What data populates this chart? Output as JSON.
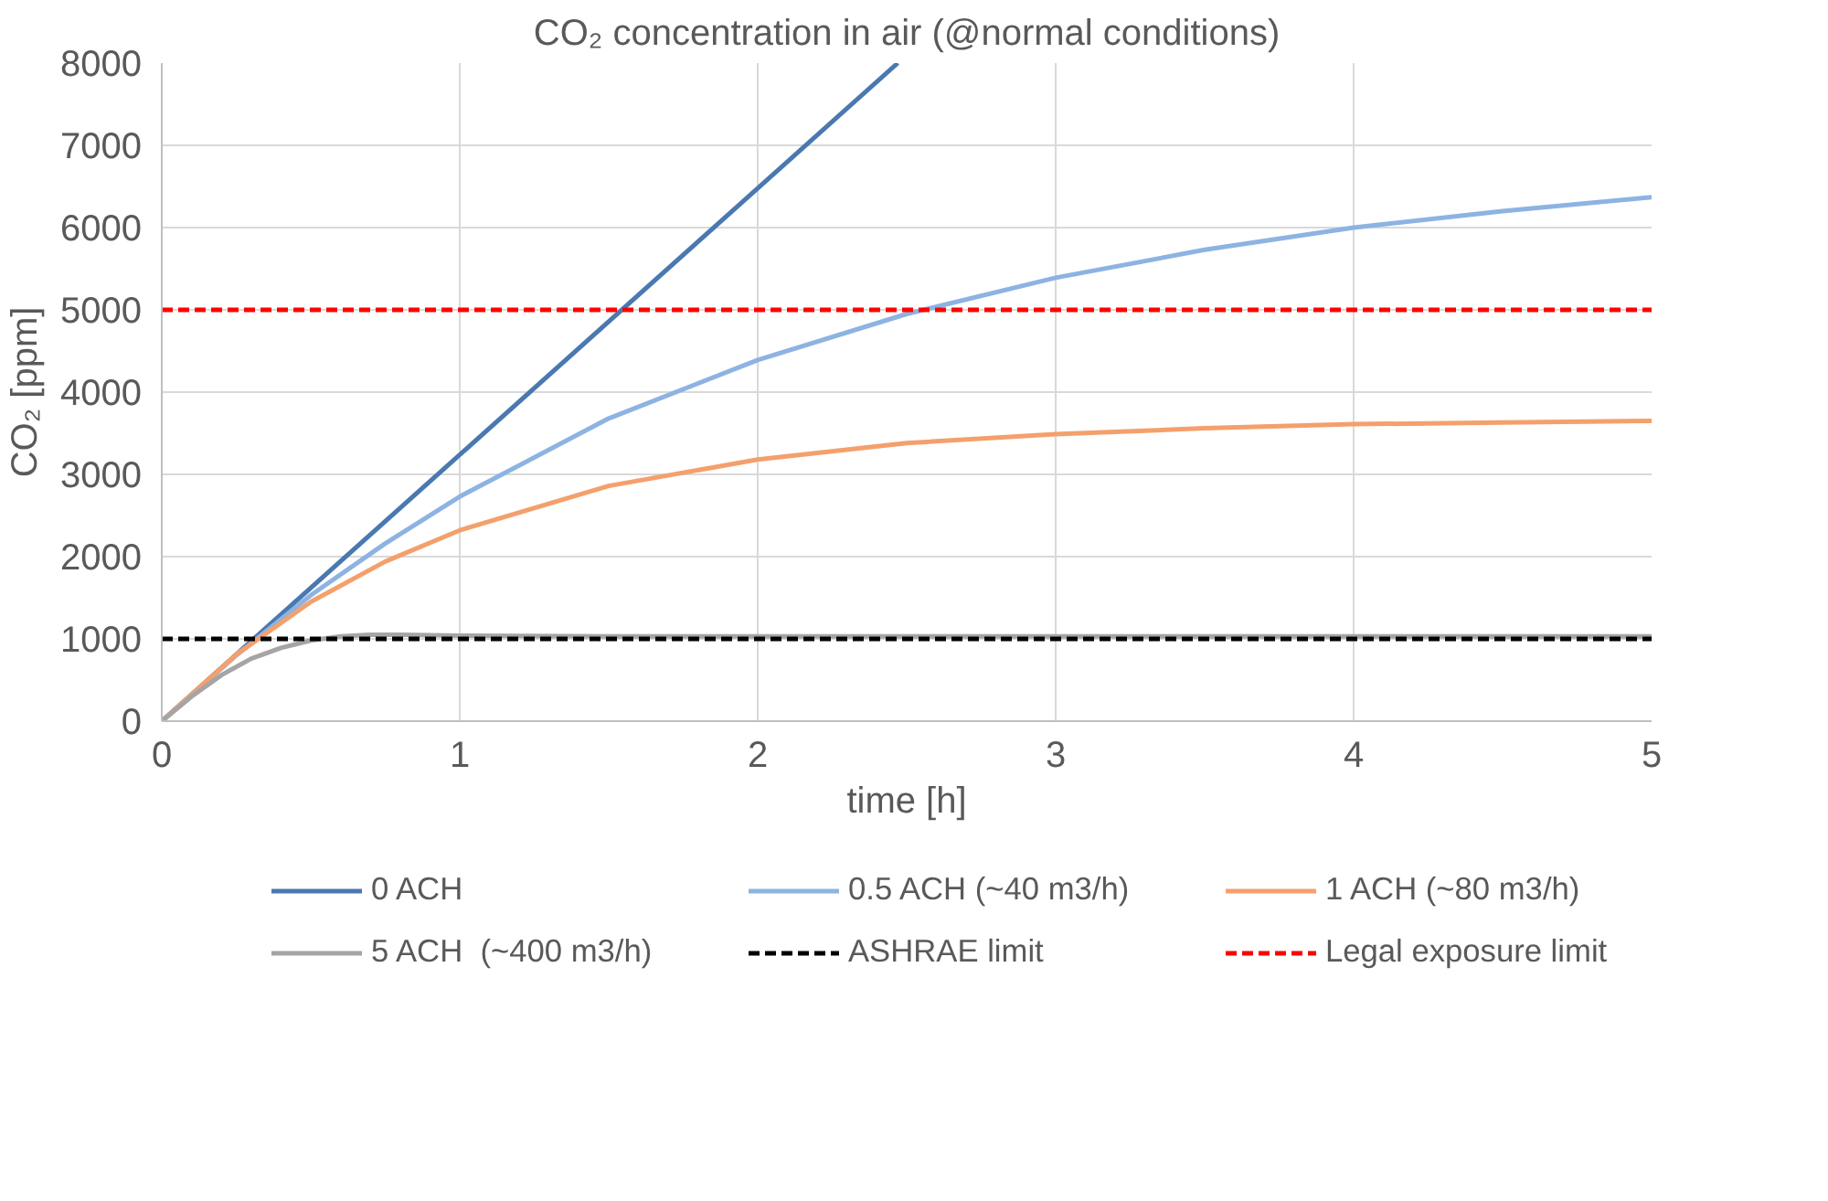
{
  "chart_data": {
    "type": "line",
    "title": "CO₂ concentration in air (@normal conditions)",
    "xlabel": "time [h]",
    "ylabel": "CO₂ [ppm]",
    "xlim": [
      0,
      5
    ],
    "ylim": [
      0,
      8000
    ],
    "xticks": [
      0,
      1,
      2,
      3,
      4,
      5
    ],
    "yticks": [
      0,
      1000,
      2000,
      3000,
      4000,
      5000,
      6000,
      7000,
      8000
    ],
    "grid": true,
    "legend": "bottom",
    "marker": "none",
    "line_style": "solid",
    "series": [
      {
        "name": "0 ACH",
        "color": "#4a78b0",
        "x": [
          0,
          2.47
        ],
        "values": [
          0,
          8000
        ]
      },
      {
        "name": "0.5 ACH (~40 m3/h)",
        "color": "#8db3e2",
        "x": [
          0,
          0.25,
          0.5,
          0.75,
          1,
          1.5,
          2,
          2.5,
          3,
          3.5,
          4,
          4.5,
          5
        ],
        "values": [
          0,
          800,
          1530,
          2160,
          2730,
          3680,
          4390,
          4950,
          5390,
          5730,
          6000,
          6200,
          6370
        ]
      },
      {
        "name": "1 ACH (~80 m3/h)",
        "color": "#f4a06c",
        "x": [
          0,
          0.25,
          0.5,
          0.75,
          1,
          1.5,
          2,
          2.5,
          3,
          3.5,
          4,
          4.5,
          5
        ],
        "values": [
          0,
          810,
          1450,
          1940,
          2320,
          2860,
          3180,
          3380,
          3490,
          3560,
          3610,
          3630,
          3650
        ]
      },
      {
        "name": "5 ACH  (~400 m3/h)",
        "color": "#a5a5a5",
        "x": [
          0,
          0.1,
          0.2,
          0.3,
          0.4,
          0.5,
          0.6,
          0.7,
          0.8,
          1,
          1.5,
          5
        ],
        "values": [
          0,
          300,
          560,
          760,
          890,
          980,
          1030,
          1050,
          1050,
          1040,
          1030,
          1030
        ]
      }
    ],
    "ref_lines": [
      {
        "axis": "y",
        "value": 1000,
        "label": "ASHRAE limit",
        "color": "#000000",
        "line_style": "dashed"
      },
      {
        "axis": "y",
        "value": 5000,
        "label": "Legal exposure limit",
        "color": "#ff0000",
        "line_style": "dashed"
      }
    ]
  }
}
